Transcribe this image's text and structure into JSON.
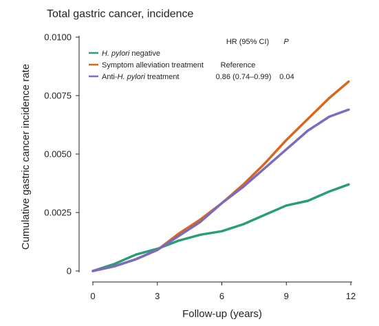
{
  "chart_data": {
    "type": "line",
    "title": "Total gastric cancer, incidence",
    "xlabel": "Follow-up (years)",
    "ylabel": "Cumulative gastric cancer incidence rate",
    "xlim": [
      0,
      12
    ],
    "ylim": [
      0,
      0.01
    ],
    "x_ticks": [
      "0",
      "3",
      "6",
      "9",
      "12"
    ],
    "y_ticks": [
      "0",
      "0.0025",
      "0.0050",
      "0.0075",
      "0.0100"
    ],
    "grid": false,
    "legend_position": "top-left",
    "table_headers": {
      "hr": "HR (95% CI)",
      "p": "P"
    },
    "x": [
      0,
      1,
      2,
      3,
      4,
      5,
      6,
      7,
      8,
      9,
      10,
      11,
      11.9
    ],
    "series": [
      {
        "name": "H. pylori negative",
        "name_italic": "H. pylori",
        "name_rest": " negative",
        "color": "#2a9d78",
        "hr": "",
        "p": "",
        "values": [
          0,
          0.0003,
          0.0007,
          0.00095,
          0.0013,
          0.00155,
          0.0017,
          0.002,
          0.0024,
          0.0028,
          0.003,
          0.0034,
          0.0037
        ]
      },
      {
        "name": "Symptom alleviation treatment",
        "name_italic": "",
        "name_rest": "Symptom alleviation treatment",
        "color": "#d9661f",
        "hr": "Reference",
        "p": "",
        "values": [
          0,
          0.0002,
          0.0005,
          0.0009,
          0.0016,
          0.0022,
          0.0029,
          0.0037,
          0.0046,
          0.0056,
          0.0065,
          0.0074,
          0.0081
        ]
      },
      {
        "name": "Anti-H. pylori treatment",
        "name_prefix": "Anti-",
        "name_italic": "H. pylori",
        "name_rest": " treatment",
        "color": "#7b6bbf",
        "hr": "0.86 (0.74–0.99)",
        "p": "0.04",
        "values": [
          0,
          0.0002,
          0.0005,
          0.0009,
          0.0015,
          0.0021,
          0.0029,
          0.0036,
          0.0044,
          0.0052,
          0.006,
          0.0066,
          0.0069
        ]
      }
    ]
  }
}
